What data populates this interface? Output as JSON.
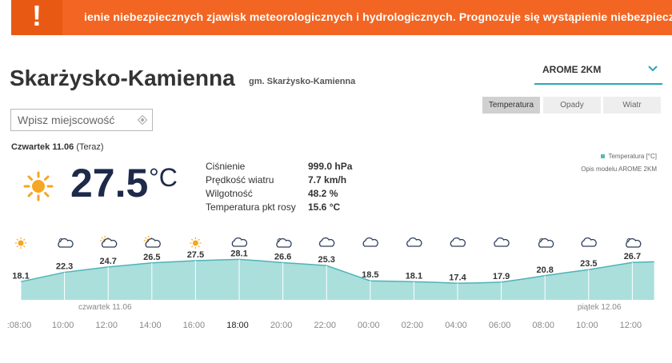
{
  "alert": {
    "icon": "exclamation-icon",
    "mark": "!",
    "text": "ienie niebezpiecznych zjawisk meteorologicznych i hydrologicznych. Prognozuje się wystąpienie niebezpiecznych zjawisk"
  },
  "location": {
    "city": "Skarżysko-Kamienna",
    "gmina": "gm. Skarżysko-Kamienna"
  },
  "model": {
    "selected": "AROME 2KM",
    "icon": "chevron-down-icon"
  },
  "tabs": [
    {
      "label": "Temperatura",
      "active": true
    },
    {
      "label": "Opady",
      "active": false
    },
    {
      "label": "Wiatr",
      "active": false
    }
  ],
  "search": {
    "placeholder": "Wpisz miejscowość",
    "icon": "location-target-icon"
  },
  "current": {
    "day_bold": "Czwartek 11.06",
    "day_rest": " (Teraz)",
    "temperature": "27.5",
    "unit": "°C",
    "icon": "sun-icon",
    "details": [
      {
        "label": "Ciśnienie",
        "value": "999.0 hPa"
      },
      {
        "label": "Prędkość wiatru",
        "value": "7.7 km/h"
      },
      {
        "label": "Wilgotność",
        "value": "48.2 %"
      },
      {
        "label": "Temperatura pkt rosy",
        "value": "15.6 °C"
      }
    ]
  },
  "legend": {
    "label": "Temperatura [°C]",
    "model_note": "Opis modelu AROME 2KM"
  },
  "colors": {
    "alert": "#f26522",
    "accent": "#2aa7b5",
    "area_fill": "#aadfdc",
    "area_line": "#4fb3b8",
    "temp_text": "#1e2a4a",
    "sun": "#f5a623",
    "cloud": "#2d3e5a"
  },
  "chart_data": {
    "type": "area",
    "x": [
      "08:00",
      "09:00",
      "10:00",
      "11:00",
      "12:00",
      "13:00",
      "14:00",
      "15:00",
      "16:00",
      "17:00",
      "18:00",
      "19:00",
      "20:00",
      "21:00",
      "22:00",
      "23:00",
      "00:00",
      "01:00",
      "02:00",
      "03:00",
      "04:00",
      "05:00",
      "06:00",
      "07:00",
      "08:00",
      "09:00",
      "10:00",
      "11:00",
      "12:00",
      "13:00"
    ],
    "values": [
      18.1,
      20.2,
      22.3,
      23.5,
      24.7,
      25.6,
      26.5,
      27.0,
      27.5,
      27.8,
      28.1,
      27.4,
      26.6,
      26.0,
      25.3,
      21.9,
      18.5,
      18.3,
      18.1,
      17.8,
      17.4,
      17.6,
      17.9,
      19.3,
      20.8,
      22.2,
      23.5,
      25.1,
      26.7,
      27.0
    ],
    "labels": [
      {
        "time": "08:00",
        "value": "18.1",
        "icon": "sun-icon"
      },
      {
        "time": "10:00",
        "value": "22.3",
        "icon": "cloud-sun-icon"
      },
      {
        "time": "12:00",
        "value": "24.7",
        "icon": "partly-cloudy-icon"
      },
      {
        "time": "14:00",
        "value": "26.5",
        "icon": "partly-cloudy-icon"
      },
      {
        "time": "16:00",
        "value": "27.5",
        "icon": "sun-icon"
      },
      {
        "time": "18:00",
        "value": "28.1",
        "icon": "cloud-icon"
      },
      {
        "time": "20:00",
        "value": "26.6",
        "icon": "cloud-sun-icon"
      },
      {
        "time": "22:00",
        "value": "25.3",
        "icon": "cloud-icon"
      },
      {
        "time": "00:00",
        "value": "18.5",
        "icon": "cloud-icon"
      },
      {
        "time": "02:00",
        "value": "18.1",
        "icon": "cloud-icon"
      },
      {
        "time": "04:00",
        "value": "17.4",
        "icon": "cloud-icon"
      },
      {
        "time": "06:00",
        "value": "17.9",
        "icon": "cloud-icon"
      },
      {
        "time": "08:00",
        "value": "20.8",
        "icon": "cloud-sun-icon"
      },
      {
        "time": "10:00",
        "value": "23.5",
        "icon": "cloud-icon"
      },
      {
        "time": "12:00",
        "value": "26.7",
        "icon": "cloud-sun-icon"
      }
    ],
    "day_markers": [
      {
        "label": "czwartek 11.06",
        "time": "08:00"
      },
      {
        "label": "piątek 12.06",
        "time": "12:00"
      }
    ],
    "xticks": [
      ":08:00",
      "10:00",
      "12:00",
      "14:00",
      "16:00",
      "18:00",
      "20:00",
      "22:00",
      "00:00",
      "02:00",
      "04:00",
      "06:00",
      "08:00",
      "10:00",
      "12:00"
    ],
    "ylim": [
      10,
      35
    ],
    "grid": false,
    "legend": "top-right",
    "highlight_tick": "18:00"
  }
}
